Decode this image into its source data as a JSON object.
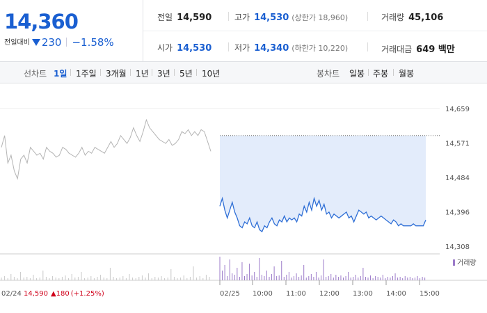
{
  "quote": {
    "price": "14,360",
    "change_label": "전일대비",
    "change": "230",
    "change_pct": "−1.58%"
  },
  "stats": [
    {
      "key": "전일",
      "value": "14,590",
      "color": "normal"
    },
    {
      "key": "고가",
      "value": "14,530",
      "sub": "(상한가 18,960)",
      "color": "blue"
    },
    {
      "key": "거래량",
      "value": "45,106",
      "color": "normal"
    },
    {
      "key": "시가",
      "value": "14,530",
      "color": "blue"
    },
    {
      "key": "저가",
      "value": "14,340",
      "sub": "(하한가 10,220)",
      "color": "blue"
    },
    {
      "key": "거래대금",
      "value": "649 백만",
      "color": "normal"
    }
  ],
  "toolbar": {
    "line_label": "선차트",
    "periods": [
      "1일",
      "1주일",
      "3개월",
      "1년",
      "3년",
      "5년",
      "10년"
    ],
    "active_period": "1일",
    "candle_label": "봉차트",
    "candles": [
      "일봉",
      "주봉",
      "월봉"
    ]
  },
  "chart_data": {
    "type": "line",
    "y_ticks": [
      "14,659",
      "14,571",
      "14,484",
      "14,396",
      "14,308"
    ],
    "ylim": [
      14308,
      14659
    ],
    "x_ticks": [
      "02/25",
      "10:00",
      "11:00",
      "12:00",
      "13:00",
      "14:00",
      "15:00"
    ],
    "prev_day_label": "02/24",
    "prev_day_summary": {
      "close": "14,590",
      "change": "▲180",
      "change_pct": "(+1.25%)"
    },
    "volume_legend": "거래량",
    "reference_line": 14590,
    "series": [
      {
        "session": "prev_day",
        "values": [
          14560,
          14590,
          14520,
          14540,
          14500,
          14480,
          14530,
          14540,
          14520,
          14560,
          14550,
          14540,
          14545,
          14530,
          14560,
          14550,
          14545,
          14535,
          14540,
          14560,
          14555,
          14545,
          14540,
          14535,
          14545,
          14560,
          14540,
          14550,
          14545,
          14560,
          14555,
          14550,
          14545,
          14560,
          14575,
          14560,
          14570,
          14590,
          14580,
          14570,
          14585,
          14610,
          14590,
          14575,
          14600,
          14630,
          14610,
          14600,
          14590,
          14580,
          14575,
          14570,
          14580,
          14565,
          14570,
          14580,
          14600,
          14595,
          14605,
          14590,
          14600,
          14590,
          14605,
          14600,
          14575,
          14550
        ]
      },
      {
        "session": "today",
        "values": [
          14410,
          14430,
          14400,
          14380,
          14400,
          14420,
          14395,
          14380,
          14360,
          14355,
          14370,
          14365,
          14380,
          14360,
          14355,
          14370,
          14350,
          14345,
          14360,
          14355,
          14370,
          14380,
          14365,
          14360,
          14375,
          14370,
          14385,
          14370,
          14380,
          14375,
          14380,
          14370,
          14390,
          14385,
          14410,
          14395,
          14420,
          14400,
          14430,
          14410,
          14425,
          14400,
          14415,
          14390,
          14395,
          14380,
          14390,
          14385,
          14380,
          14385,
          14390,
          14395,
          14380,
          14385,
          14370,
          14385,
          14400,
          14395,
          14390,
          14395,
          14380,
          14385,
          14380,
          14375,
          14380,
          14385,
          14380,
          14375,
          14370,
          14365,
          14375,
          14370,
          14360,
          14365,
          14360,
          14360,
          14360,
          14360,
          14365,
          14360,
          14360,
          14360,
          14360,
          14375
        ]
      }
    ]
  },
  "colors": {
    "up": "#d0021b",
    "down": "#1a5fd1",
    "line_today": "#2f6fd6",
    "line_prev": "#b4b4b4",
    "fill_today": "#e3ecfb",
    "volume": "#9b7ac9"
  }
}
